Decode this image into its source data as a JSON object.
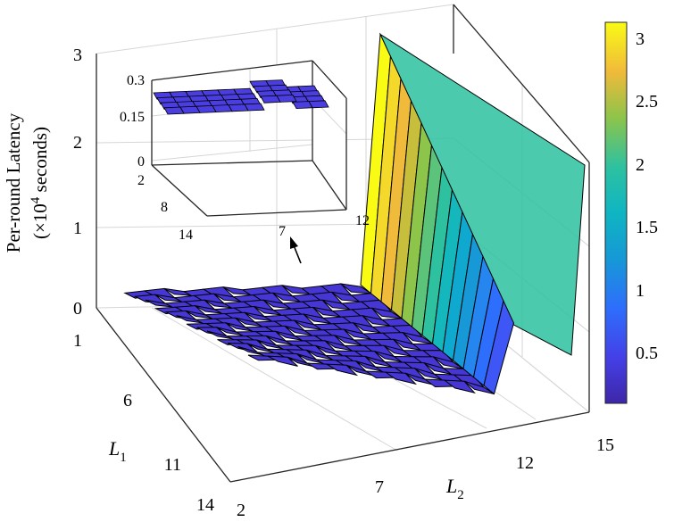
{
  "chart_data": {
    "type": "surface",
    "ylabel": "Per-round Latency",
    "ylabel_unit_prefix": "(×10",
    "ylabel_unit_exp": "4",
    "ylabel_unit_suffix": " seconds)",
    "x_axis": {
      "label": "L",
      "subscript": "2",
      "ticks": [
        "2",
        "7",
        "12",
        "15"
      ]
    },
    "y_axis": {
      "label": "L",
      "subscript": "1",
      "ticks": [
        "1",
        "6",
        "11",
        "14"
      ]
    },
    "z_axis": {
      "ticks": [
        "0",
        "1",
        "2",
        "3"
      ],
      "zlim": [
        0,
        3
      ]
    },
    "colorbar": {
      "ticks": [
        "0.5",
        "1",
        "1.5",
        "2",
        "2.5",
        "3"
      ],
      "range": [
        0.1,
        3.1
      ]
    },
    "colors": {
      "low": "#3e26a8",
      "mid": "#2dc1a0",
      "high": "#f9fb15"
    },
    "description_values": {
      "baseline_latency": 0.1,
      "spike_at_L2": 15,
      "spike_peak": 3.0,
      "spike_min_at_L1_14": 0.9
    },
    "inset": {
      "z_ticks": [
        "0",
        "0.15",
        "0.3"
      ],
      "y_ticks": [
        "2",
        "8",
        "14"
      ],
      "x_ticks": [
        "7",
        "12"
      ]
    }
  }
}
